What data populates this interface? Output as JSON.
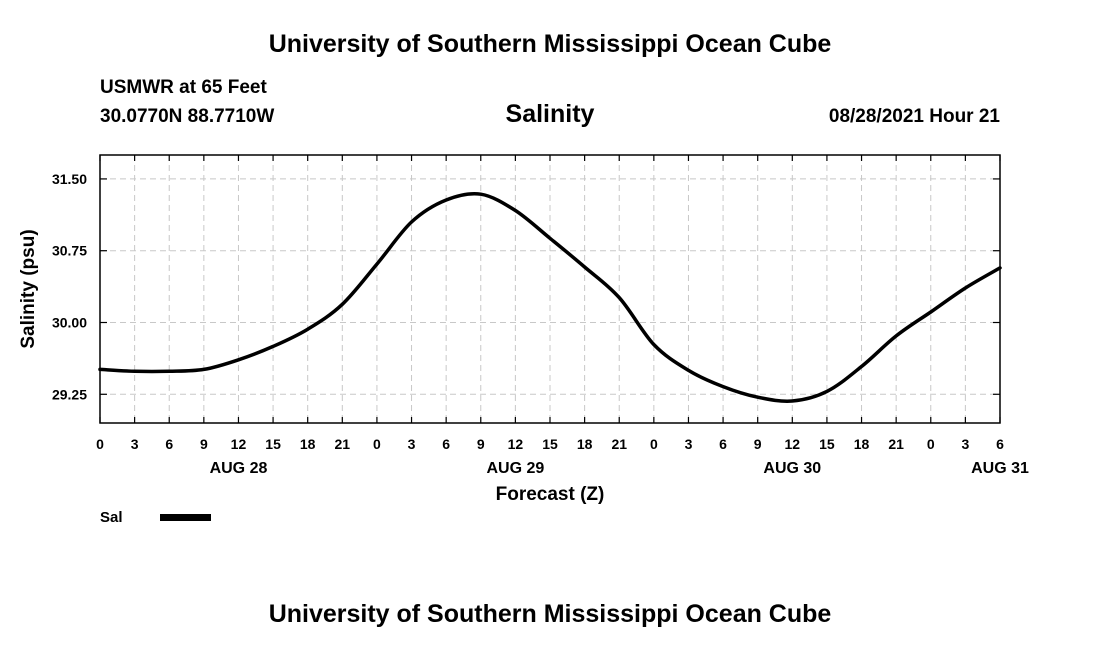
{
  "header": {
    "top_title": "University of Southern Mississippi Ocean Cube",
    "station": "USMWR at 65 Feet",
    "coords": "30.0770N  88.7710W",
    "chart_heading": "Salinity",
    "valid_time": "08/28/2021 Hour 21",
    "bottom_title": "University of Southern Mississippi Ocean Cube"
  },
  "legend": {
    "label": "Sal",
    "color": "#000000"
  },
  "chart_data": {
    "type": "line",
    "title": "Salinity",
    "xlabel": "Forecast (Z)",
    "ylabel": "Salinity (psu)",
    "x_unit": "forecast hour",
    "xlim": [
      0,
      78
    ],
    "ylim": [
      28.95,
      31.75
    ],
    "grid": true,
    "x_ticks": [
      0,
      3,
      6,
      9,
      12,
      15,
      18,
      21,
      24,
      27,
      30,
      33,
      36,
      39,
      42,
      45,
      48,
      51,
      54,
      57,
      60,
      63,
      66,
      69,
      72,
      75,
      78
    ],
    "x_tick_labels": [
      "0",
      "3",
      "6",
      "9",
      "12",
      "15",
      "18",
      "21",
      "0",
      "3",
      "6",
      "9",
      "12",
      "15",
      "18",
      "21",
      "0",
      "3",
      "6",
      "9",
      "12",
      "15",
      "18",
      "21",
      "0",
      "3",
      "6"
    ],
    "day_labels": [
      {
        "x": 12,
        "label": "AUG 28"
      },
      {
        "x": 36,
        "label": "AUG 29"
      },
      {
        "x": 60,
        "label": "AUG 30"
      },
      {
        "x": 78,
        "label": "AUG 31"
      }
    ],
    "y_ticks": [
      29.25,
      30.0,
      30.75,
      31.5
    ],
    "y_tick_labels": [
      "29.25",
      "30.00",
      "30.75",
      "31.50"
    ],
    "series": [
      {
        "name": "Sal",
        "color": "#000000",
        "x": [
          0,
          3,
          6,
          9,
          12,
          15,
          18,
          21,
          24,
          27,
          30,
          33,
          36,
          39,
          42,
          45,
          48,
          51,
          54,
          57,
          60,
          63,
          66,
          69,
          72,
          75,
          78
        ],
        "values": [
          29.51,
          29.49,
          29.49,
          29.51,
          29.61,
          29.75,
          29.93,
          30.19,
          30.61,
          31.05,
          31.28,
          31.34,
          31.17,
          30.88,
          30.58,
          30.26,
          29.77,
          29.5,
          29.33,
          29.22,
          29.18,
          29.28,
          29.54,
          29.86,
          30.11,
          30.36,
          30.57
        ]
      }
    ]
  }
}
